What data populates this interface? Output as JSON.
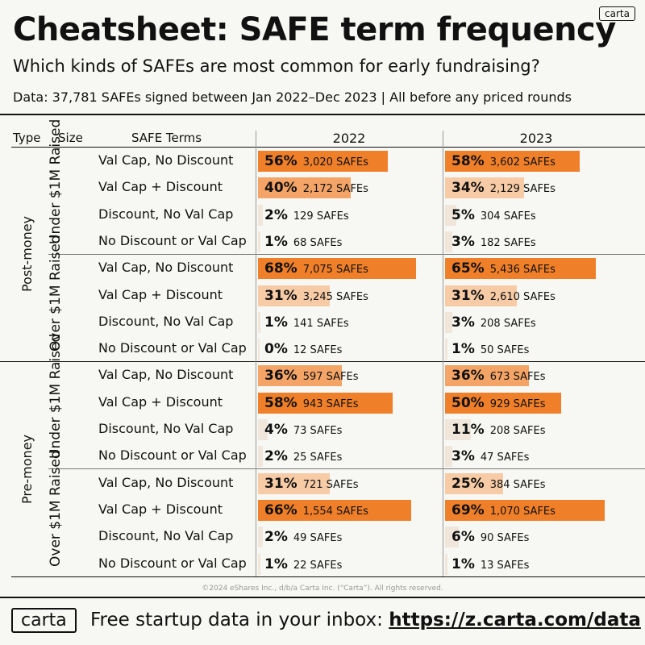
{
  "badge": "carta",
  "title": "Cheatsheet: SAFE term frequency",
  "subtitle": "Which kinds of SAFEs are most common for early fundraising?",
  "data_note": "Data: 37,781 SAFEs signed between Jan 2022–Dec 2023 | All before any priced rounds",
  "headers": {
    "type": "Type",
    "size": "Size",
    "terms": "SAFE Terms",
    "year1": "2022",
    "year2": "2023"
  },
  "colors": {
    "dark": "#f07f2a",
    "mid": "#f4a466",
    "light": "#f7cba5",
    "pale": "#f0e6da"
  },
  "count_suffix": "SAFEs",
  "chart_data": {
    "type": "table",
    "years": [
      "2022",
      "2023"
    ],
    "groups": [
      {
        "type": "Post-money",
        "sizes": [
          {
            "size": "Under $1M Raised",
            "rows": [
              {
                "term": "Val Cap, No Discount",
                "pct2022": 56,
                "count2022": "3,020",
                "pct2023": 58,
                "count2023": "3,602"
              },
              {
                "term": "Val Cap + Discount",
                "pct2022": 40,
                "count2022": "2,172",
                "pct2023": 34,
                "count2023": "2,129"
              },
              {
                "term": "Discount, No Val Cap",
                "pct2022": 2,
                "count2022": "129",
                "pct2023": 5,
                "count2023": "304"
              },
              {
                "term": "No Discount or Val Cap",
                "pct2022": 1,
                "count2022": "68",
                "pct2023": 3,
                "count2023": "182"
              }
            ]
          },
          {
            "size": "Over $1M Raised",
            "rows": [
              {
                "term": "Val Cap, No Discount",
                "pct2022": 68,
                "count2022": "7,075",
                "pct2023": 65,
                "count2023": "5,436"
              },
              {
                "term": "Val Cap + Discount",
                "pct2022": 31,
                "count2022": "3,245",
                "pct2023": 31,
                "count2023": "2,610"
              },
              {
                "term": "Discount, No Val Cap",
                "pct2022": 1,
                "count2022": "141",
                "pct2023": 3,
                "count2023": "208"
              },
              {
                "term": "No Discount or Val Cap",
                "pct2022": 0,
                "count2022": "12",
                "pct2023": 1,
                "count2023": "50"
              }
            ]
          }
        ]
      },
      {
        "type": "Pre-money",
        "sizes": [
          {
            "size": "Under $1M Raised",
            "rows": [
              {
                "term": "Val Cap, No Discount",
                "pct2022": 36,
                "count2022": "597",
                "pct2023": 36,
                "count2023": "673"
              },
              {
                "term": "Val Cap + Discount",
                "pct2022": 58,
                "count2022": "943",
                "pct2023": 50,
                "count2023": "929"
              },
              {
                "term": "Discount, No Val Cap",
                "pct2022": 4,
                "count2022": "73",
                "pct2023": 11,
                "count2023": "208"
              },
              {
                "term": "No Discount or Val Cap",
                "pct2022": 2,
                "count2022": "25",
                "pct2023": 3,
                "count2023": "47"
              }
            ]
          },
          {
            "size": "Over $1M Raised",
            "rows": [
              {
                "term": "Val Cap, No Discount",
                "pct2022": 31,
                "count2022": "721",
                "pct2023": 25,
                "count2023": "384"
              },
              {
                "term": "Val Cap + Discount",
                "pct2022": 66,
                "count2022": "1,554",
                "pct2023": 69,
                "count2023": "1,070"
              },
              {
                "term": "Discount, No Val Cap",
                "pct2022": 2,
                "count2022": "49",
                "pct2023": 6,
                "count2023": "90"
              },
              {
                "term": "No Discount or Val Cap",
                "pct2022": 1,
                "count2022": "22",
                "pct2023": 1,
                "count2023": "13"
              }
            ]
          }
        ]
      }
    ]
  },
  "copyright": "©2024 eShares Inc., d/b/a Carta Inc. (“Carta”). All rights reserved.",
  "footer": {
    "logo": "carta",
    "text": "Free startup data in your inbox:",
    "url": "https://z.carta.com/data"
  }
}
